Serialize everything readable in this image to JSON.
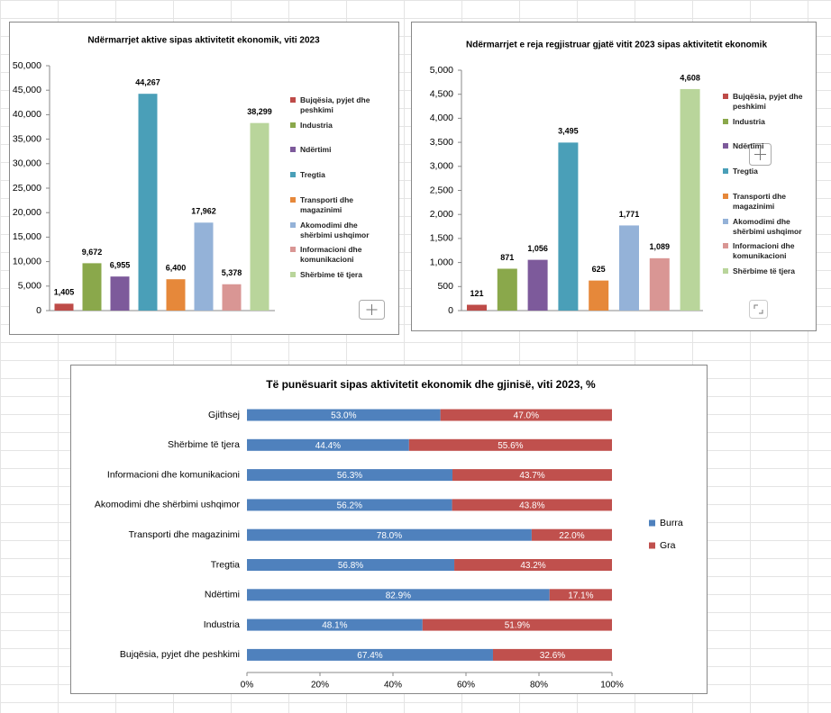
{
  "chart_data": [
    {
      "type": "bar",
      "title": "Ndërmarrjet aktive sipas aktivitetit ekonomik, viti 2023",
      "categories": [
        "Bujqësia, pyjet dhe peshkimi",
        "Industria",
        "Ndërtimi",
        "Tregtia",
        "Transporti dhe magazinimi",
        "Akomodimi dhe shërbimi ushqimor",
        "Informacioni dhe komunikacioni",
        "Shërbime të tjera"
      ],
      "colors": [
        "#be4b48",
        "#8aa84b",
        "#7d5a9b",
        "#4a9fb8",
        "#e6883a",
        "#94b2d8",
        "#d99694",
        "#b9d59b"
      ],
      "values": [
        1405,
        9672,
        6955,
        44267,
        6400,
        17962,
        5378,
        38299
      ],
      "value_labels": [
        "1,405",
        "9,672",
        "6,955",
        "44,267",
        "6,400",
        "17,962",
        "5,378",
        "38,299"
      ],
      "ylim": [
        0,
        50000
      ],
      "yticks": [
        0,
        {
          "value": 5000,
          "label": "5,000"
        },
        {
          "value": 10000,
          "label": "10,000"
        },
        {
          "value": 15000,
          "label": "15,000"
        },
        {
          "value": 20000,
          "label": "20,000"
        },
        {
          "value": 25000,
          "label": "25,000"
        },
        {
          "value": 30000,
          "label": "30,000"
        },
        {
          "value": 35000,
          "label": "35,000"
        },
        {
          "value": 40000,
          "label": "40,000"
        },
        {
          "value": 45000,
          "label": "45,000"
        },
        {
          "value": 50000,
          "label": "50,000"
        }
      ],
      "legend": "right"
    },
    {
      "type": "bar",
      "title": "Ndërmarrjet e reja regjistruar gjatë vitit 2023 sipas aktivitetit ekonomik",
      "categories": [
        "Bujqësia, pyjet dhe peshkimi",
        "Industria",
        "Ndërtimi",
        "Tregtia",
        "Transporti dhe magazinimi",
        "Akomodimi dhe shërbimi ushqimor",
        "Informacioni dhe komunikacioni",
        "Shërbime të tjera"
      ],
      "colors": [
        "#be4b48",
        "#8aa84b",
        "#7d5a9b",
        "#4a9fb8",
        "#e6883a",
        "#94b2d8",
        "#d99694",
        "#b9d59b"
      ],
      "values": [
        121,
        871,
        1056,
        3495,
        625,
        1771,
        1089,
        4608
      ],
      "value_labels": [
        "121",
        "871",
        "1,056",
        "3,495",
        "625",
        "1,771",
        "1,089",
        "4,608"
      ],
      "ylim": [
        0,
        5000
      ],
      "yticks": [
        0,
        500,
        {
          "value": 1000,
          "label": "1,000"
        },
        {
          "value": 1500,
          "label": "1,500"
        },
        {
          "value": 2000,
          "label": "2,000"
        },
        {
          "value": 2500,
          "label": "2,500"
        },
        {
          "value": 3000,
          "label": "3,000"
        },
        {
          "value": 3500,
          "label": "3,500"
        },
        {
          "value": 4000,
          "label": "4,000"
        },
        {
          "value": 4500,
          "label": "4,500"
        },
        {
          "value": 5000,
          "label": "5,000"
        }
      ],
      "legend": "right"
    },
    {
      "type": "stacked-hbar",
      "title": "Të punësuarit  sipas aktivitetit ekonomik dhe gjinisë, viti 2023, %",
      "categories": [
        "Gjithsej",
        "Shërbime të tjera",
        "Informacioni dhe komunikacioni",
        "Akomodimi dhe shërbimi ushqimor",
        "Transporti dhe magazinimi",
        "Tregtia",
        "Ndërtimi",
        "Industria",
        "Bujqësia, pyjet dhe  peshkimi"
      ],
      "series": [
        {
          "name": "Burra",
          "color": "#4f81bd",
          "values": [
            53.0,
            44.4,
            56.3,
            56.2,
            78.0,
            56.8,
            82.9,
            48.1,
            67.4
          ],
          "value_labels": [
            "53.0%",
            "44.4%",
            "56.3%",
            "56.2%",
            "78.0%",
            "56.8%",
            "82.9%",
            "48.1%",
            "67.4%"
          ]
        },
        {
          "name": "Gra",
          "color": "#c0504d",
          "values": [
            47.0,
            55.6,
            43.7,
            43.8,
            22.0,
            43.2,
            17.1,
            51.9,
            32.6
          ],
          "value_labels": [
            "47.0%",
            "55.6%",
            "43.7%",
            "43.8%",
            "22.0%",
            "43.2%",
            "17.1%",
            "51.9%",
            "32.6%"
          ]
        }
      ],
      "xlim": [
        0,
        100
      ],
      "xticks": [
        {
          "value": 0,
          "label": "0%"
        },
        {
          "value": 20,
          "label": "20%"
        },
        {
          "value": 40,
          "label": "40%"
        },
        {
          "value": 60,
          "label": "60%"
        },
        {
          "value": 80,
          "label": "80%"
        },
        {
          "value": 100,
          "label": "100%"
        }
      ],
      "legend": "right"
    }
  ]
}
